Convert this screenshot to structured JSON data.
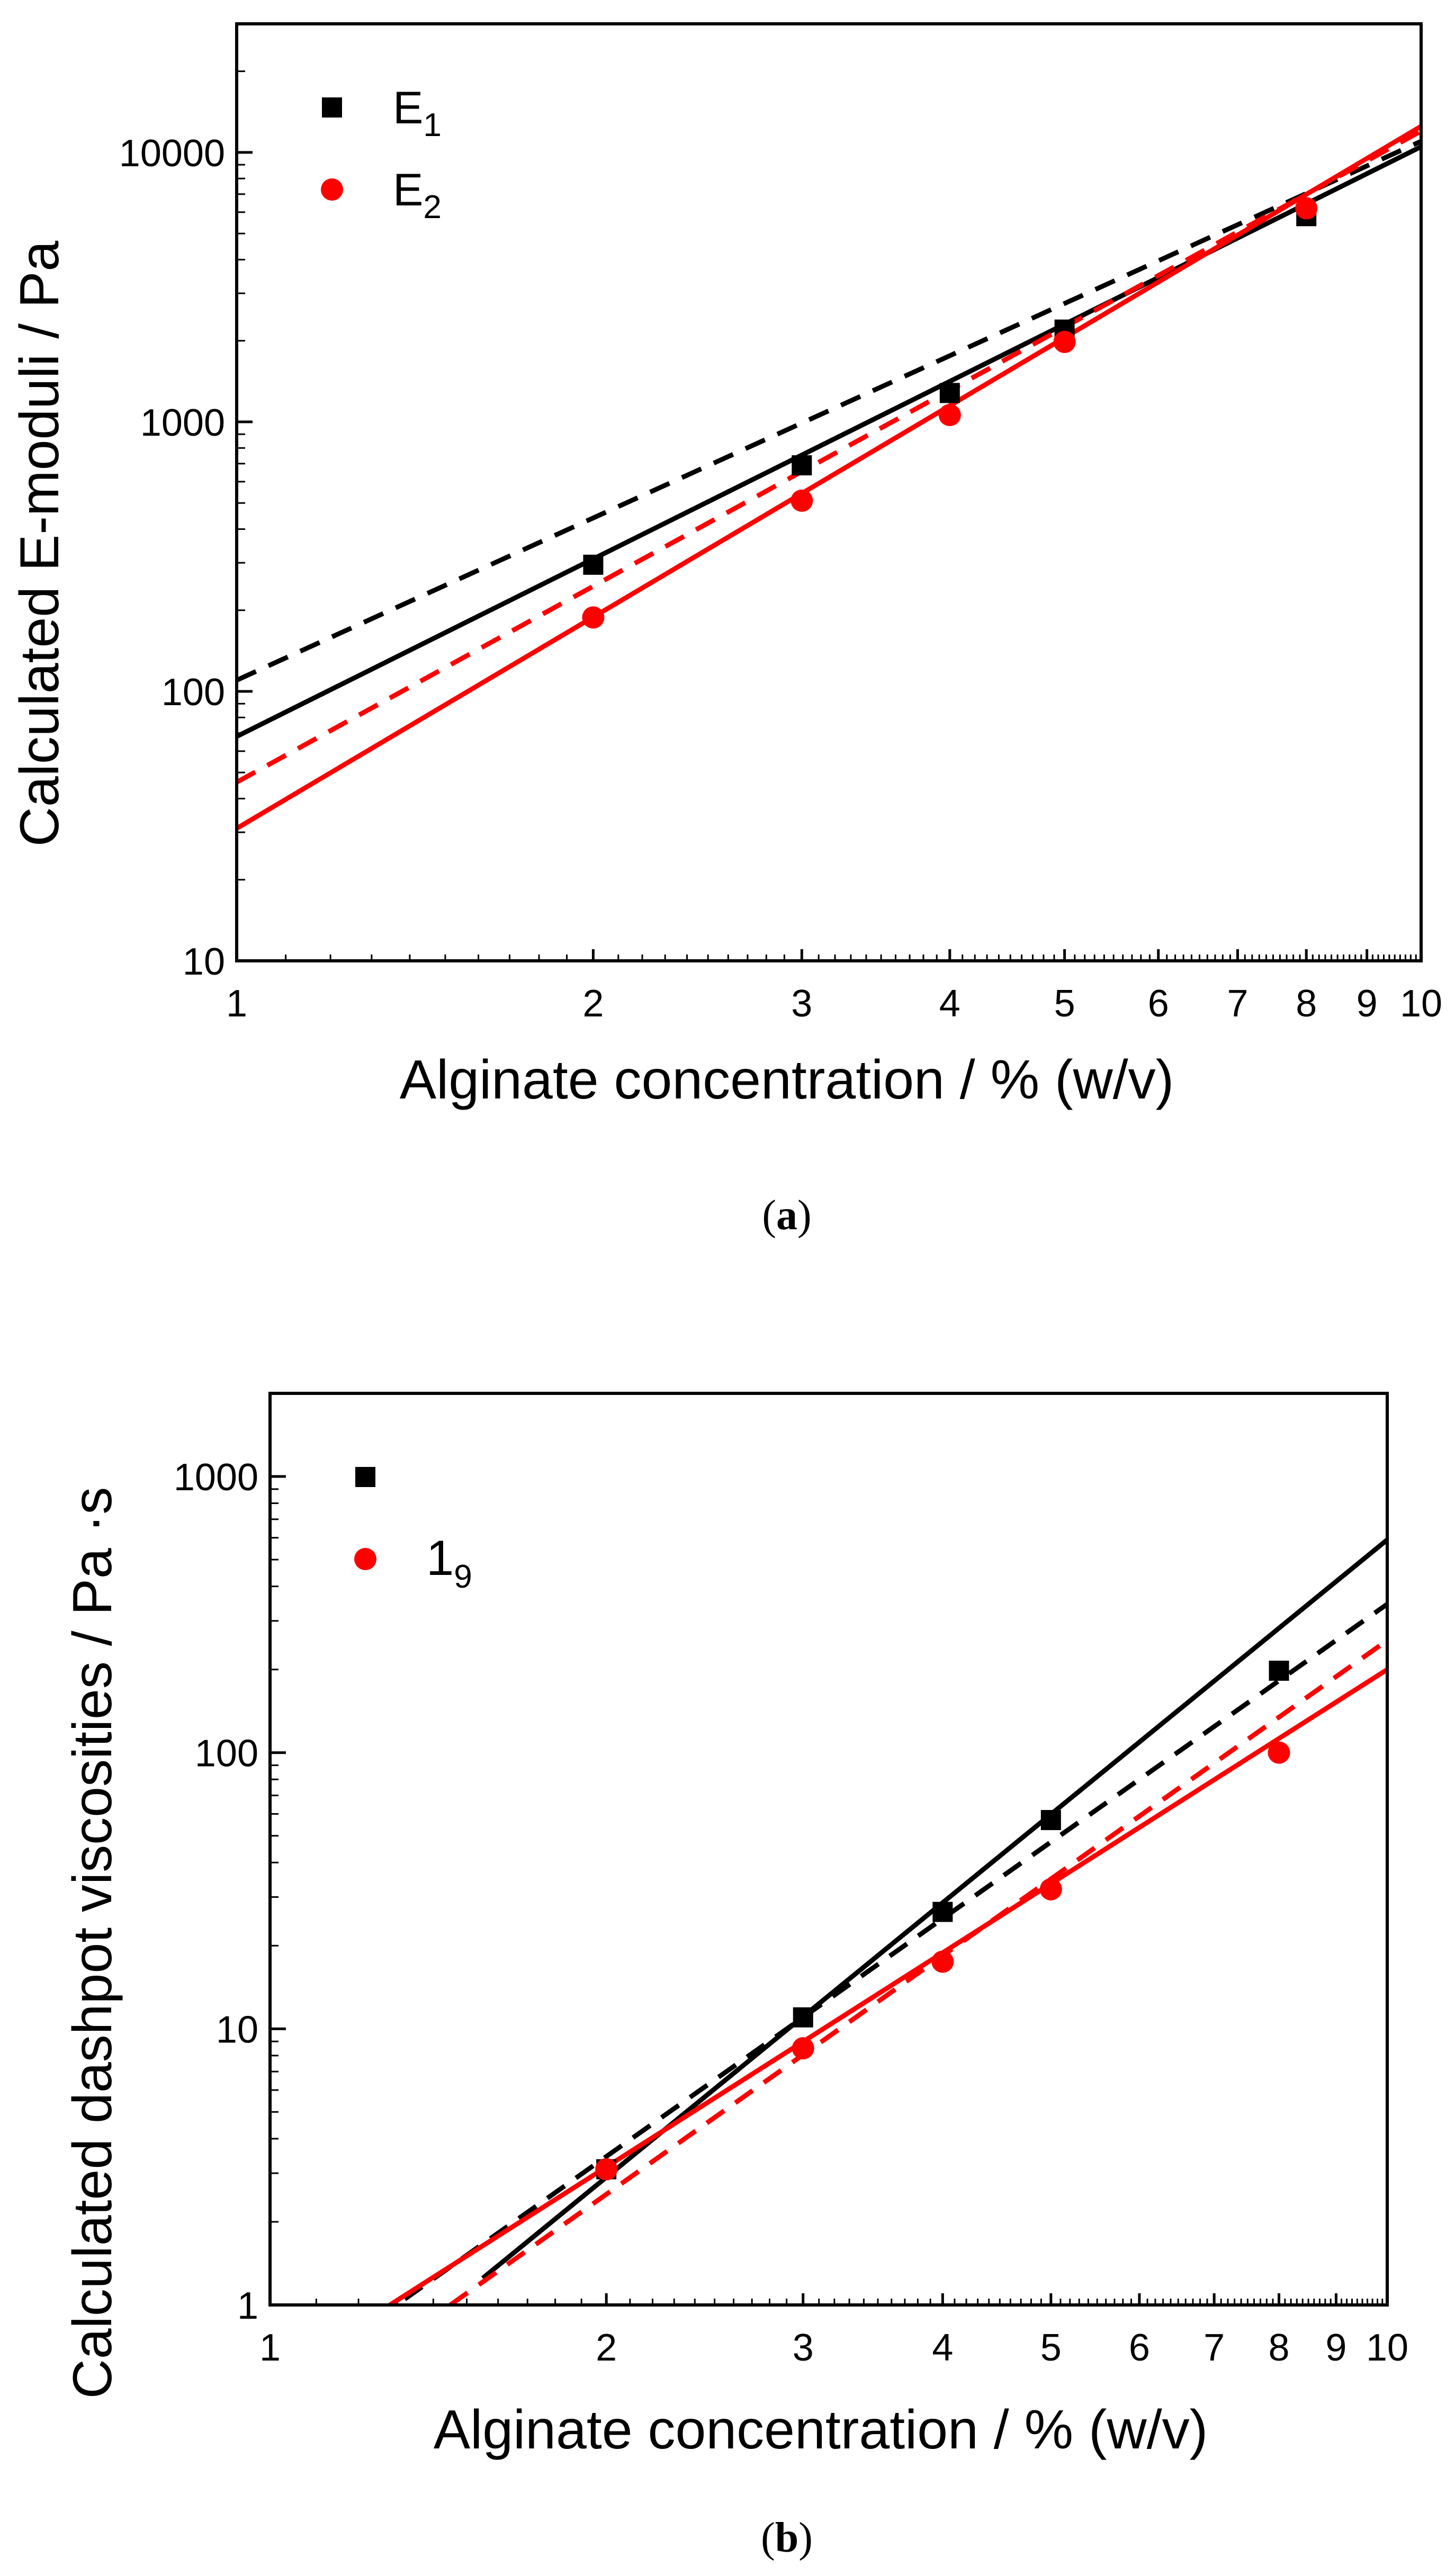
{
  "chart_data": [
    {
      "type": "scatter",
      "panel_label": "(a)",
      "caption_letter": "a",
      "xlabel": "Alginate concentration / % (w/v)",
      "ylabel": "Calculated E-moduli / Pa",
      "xscale": "log",
      "yscale": "log",
      "xlim": [
        1,
        10
      ],
      "ylim": [
        10,
        30000
      ],
      "x_ticks": [
        1,
        2,
        3,
        4,
        5,
        6,
        7,
        8,
        9,
        10
      ],
      "y_ticks": [
        10,
        100,
        1000,
        10000
      ],
      "legend_position": "top-left",
      "series": [
        {
          "name": "E",
          "subscript": "1",
          "marker": "square",
          "color": "#000000",
          "x": [
            2,
            3,
            4,
            5,
            8
          ],
          "y": [
            295,
            690,
            1280,
            2200,
            5800
          ],
          "fit_solid": {
            "at_x1": 68,
            "at_x10": 10500
          },
          "fit_dashed": {
            "at_x1": 110,
            "at_x10": 11000
          }
        },
        {
          "name": "E",
          "subscript": "2",
          "marker": "circle",
          "color": "#ff0000",
          "x": [
            2,
            3,
            4,
            5,
            8
          ],
          "y": [
            188,
            510,
            1060,
            1980,
            6200
          ],
          "fit_solid": {
            "at_x1": 31,
            "at_x10": 12500
          },
          "fit_dashed": {
            "at_x1": 46,
            "at_x10": 12000
          }
        }
      ]
    },
    {
      "type": "scatter",
      "panel_label": "(b)",
      "caption_letter": "b",
      "xlabel": "Alginate concentration / % (w/v)",
      "ylabel": "Calculated dashpot viscosities / Pa ·s",
      "xscale": "log",
      "yscale": "log",
      "xlim": [
        1,
        10
      ],
      "ylim": [
        1,
        2000
      ],
      "x_ticks": [
        1,
        2,
        3,
        4,
        5,
        6,
        7,
        8,
        9,
        10
      ],
      "y_ticks": [
        1,
        10,
        100,
        1000
      ],
      "legend_position": "top-left",
      "series": [
        {
          "name": "",
          "subscript": "",
          "marker": "square",
          "color": "#000000",
          "x": [
            2,
            3,
            4,
            5,
            8
          ],
          "y": [
            3.1,
            11,
            26.5,
            57,
            198
          ],
          "fit_solid": {
            "x_start": 1.55,
            "y_start": 1.25,
            "at_x10": 590
          },
          "fit_dashed": {
            "x_start": 1.32,
            "y_start": 1.05,
            "at_x10": 345
          }
        },
        {
          "name": "1",
          "subscript": "9",
          "marker": "circle",
          "color": "#ff0000",
          "x": [
            2,
            3,
            4,
            5,
            8
          ],
          "y": [
            3.1,
            8.5,
            17.5,
            32,
            100
          ],
          "fit_solid": {
            "x_start": 1.28,
            "y_start": 1.0,
            "at_x10": 200
          },
          "fit_dashed": {
            "x_start": 1.45,
            "y_start": 1.0,
            "at_x10": 255
          }
        }
      ]
    }
  ]
}
